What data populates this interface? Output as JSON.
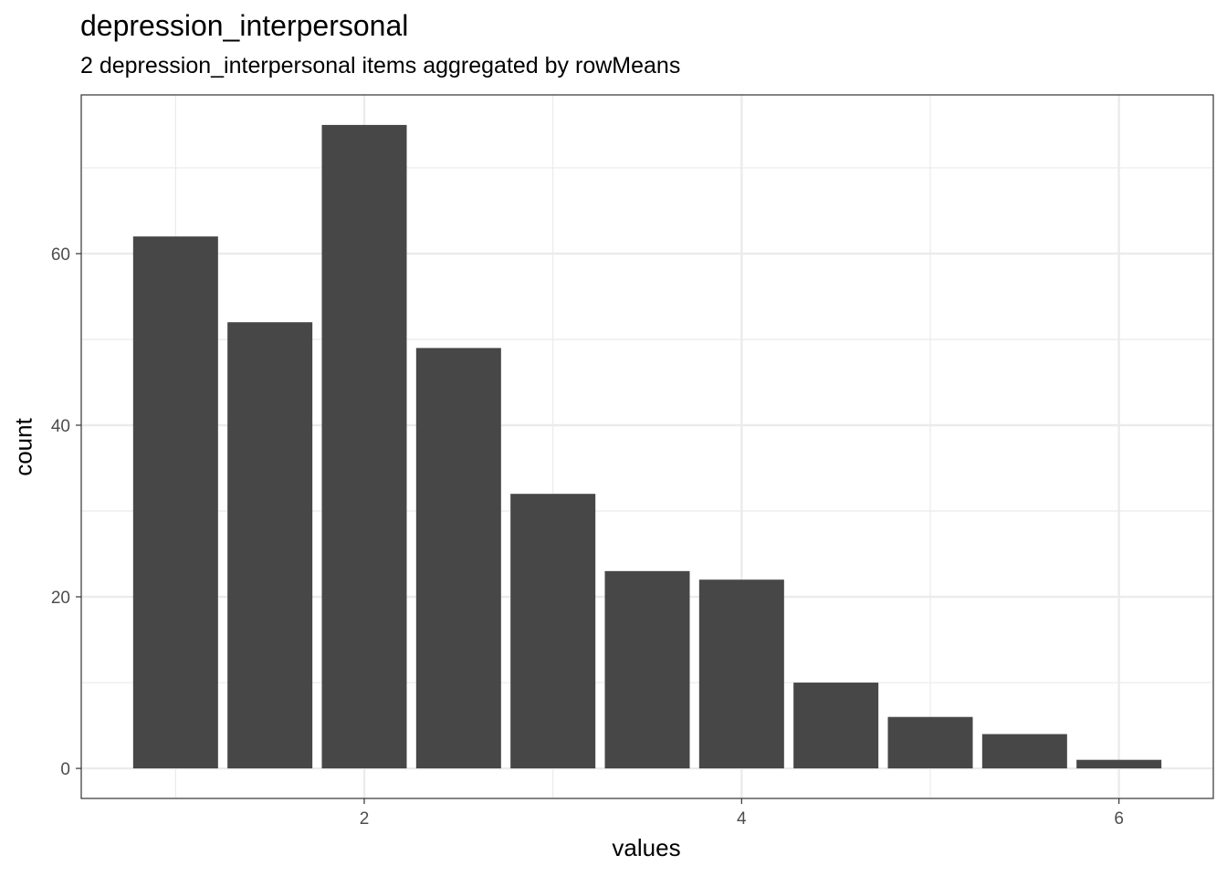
{
  "chart_data": {
    "type": "bar",
    "title": "depression_interpersonal",
    "subtitle": "2 depression_interpersonal items aggregated by rowMeans",
    "xlabel": "values",
    "ylabel": "count",
    "x": [
      1.0,
      1.5,
      2.0,
      2.5,
      3.0,
      3.5,
      4.0,
      4.5,
      5.0,
      5.5,
      6.0
    ],
    "values": [
      62,
      52,
      75,
      49,
      32,
      23,
      22,
      10,
      6,
      4,
      1
    ],
    "bar_width": 0.45,
    "xlim": [
      0.5,
      6.5
    ],
    "ylim": [
      -3.5,
      78.5
    ],
    "x_ticks": [
      2,
      4,
      6
    ],
    "x_minor_ticks": [
      1,
      3,
      5
    ],
    "y_ticks": [
      0,
      20,
      40,
      60
    ],
    "y_minor_ticks": [
      10,
      30,
      50,
      70
    ],
    "grid": true,
    "bar_color": "#474747",
    "grid_color": "#ebebeb",
    "panel_border_color": "#333333"
  }
}
